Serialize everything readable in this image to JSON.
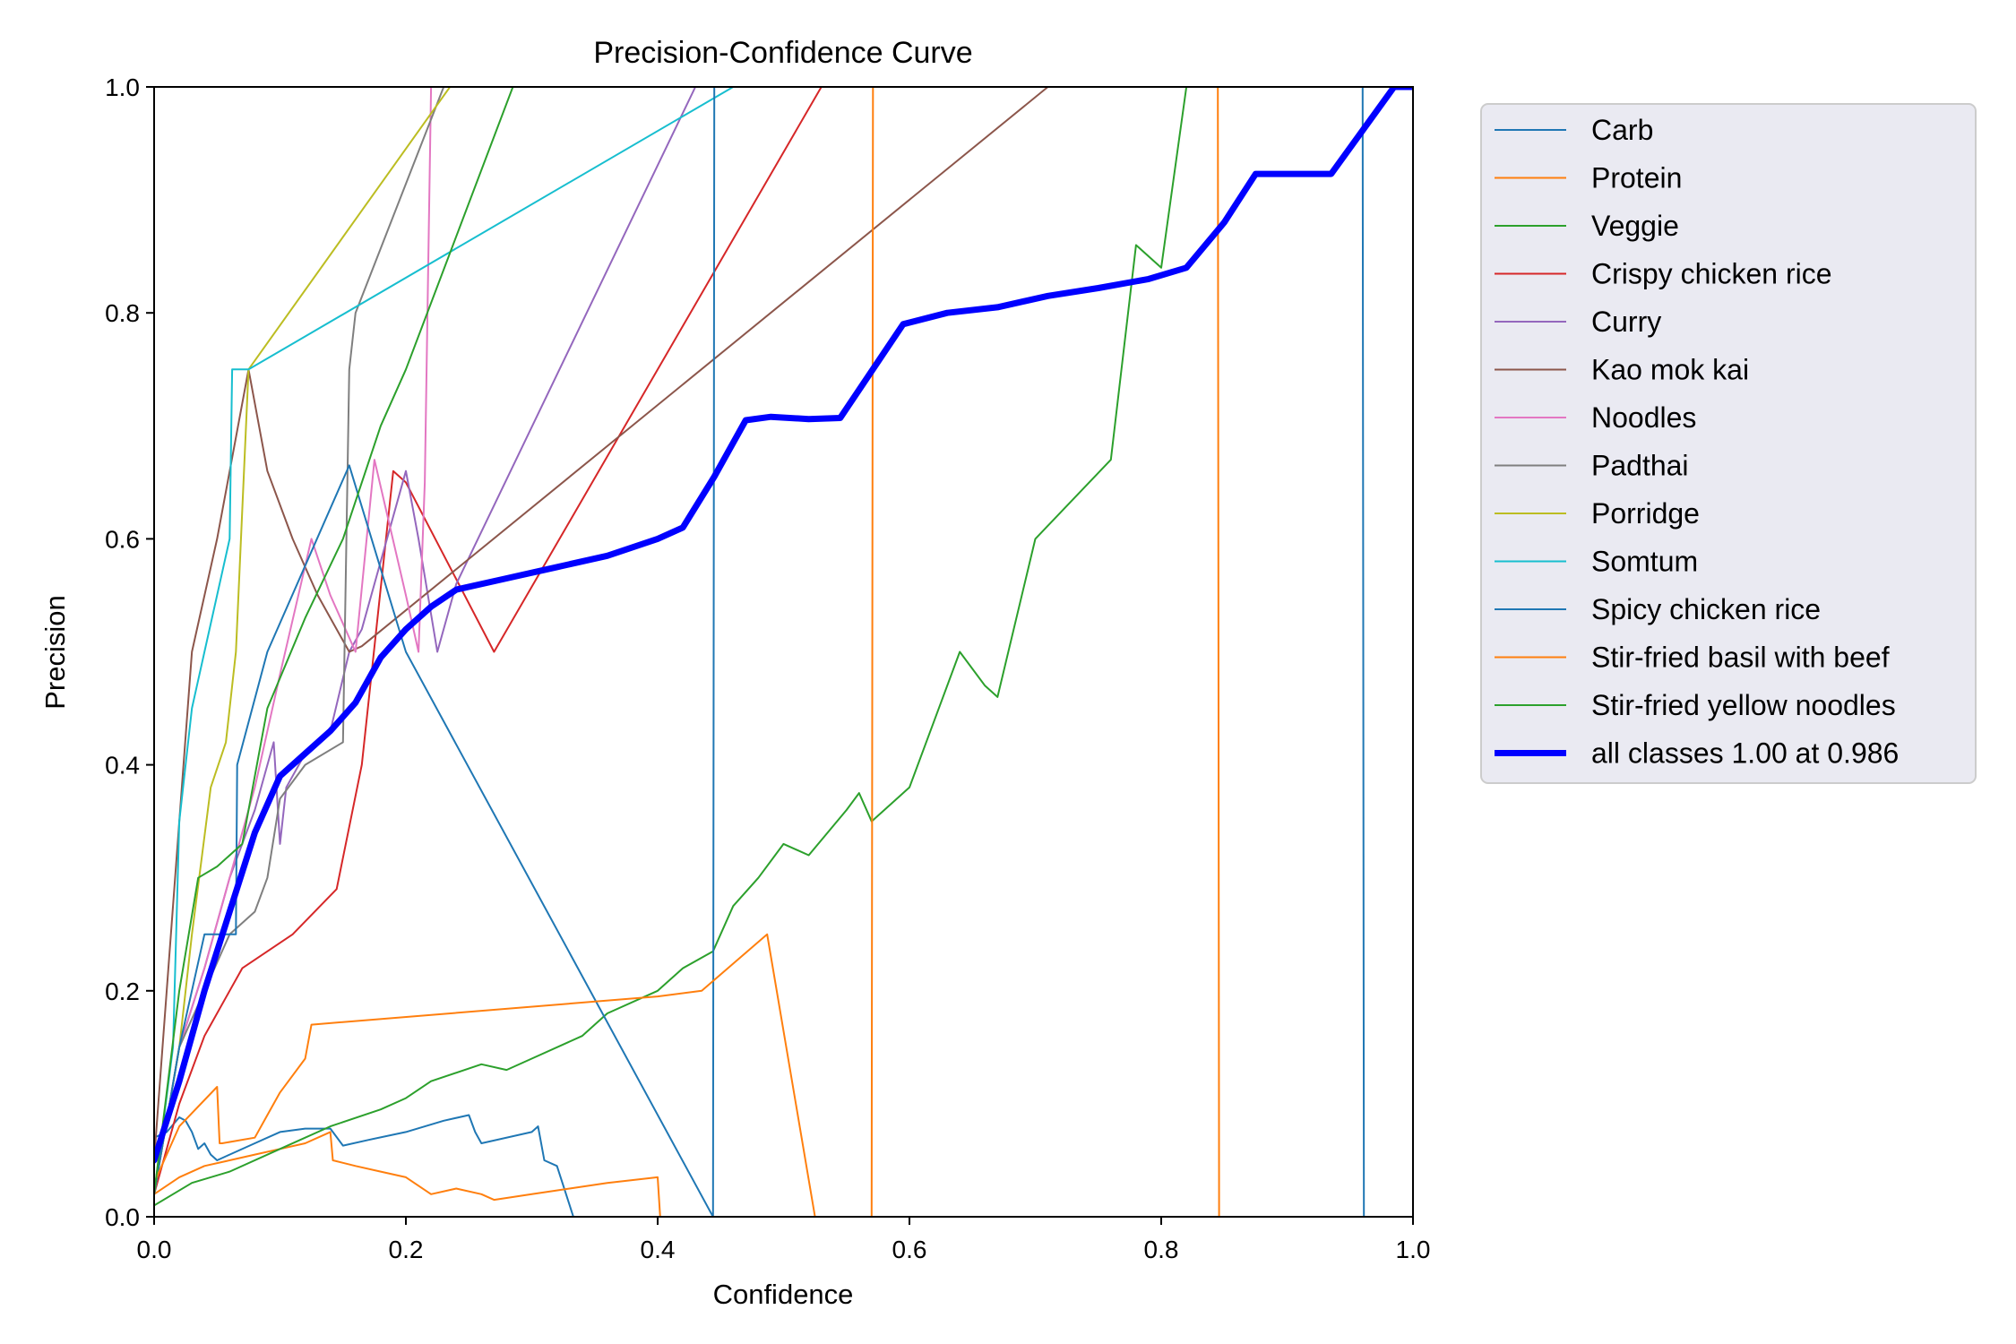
{
  "chart_data": {
    "type": "line",
    "title": "Precision-Confidence Curve",
    "xlabel": "Confidence",
    "ylabel": "Precision",
    "xlim": [
      0,
      1
    ],
    "ylim": [
      0,
      1
    ],
    "xticks": [
      "0.0",
      "0.2",
      "0.4",
      "0.6",
      "0.8",
      "1.0"
    ],
    "yticks": [
      "0.0",
      "0.2",
      "0.4",
      "0.6",
      "0.8",
      "1.0"
    ],
    "grid": false,
    "legend_position": "outside-right-top",
    "series": [
      {
        "name": "Carb",
        "color": "#1f77b4",
        "width": 2,
        "x": [
          0.0,
          0.01,
          0.02,
          0.025,
          0.03,
          0.035,
          0.04,
          0.045,
          0.05,
          0.06,
          0.08,
          0.1,
          0.12,
          0.14,
          0.15,
          0.17,
          0.2,
          0.23,
          0.25,
          0.255,
          0.26,
          0.3,
          0.305,
          0.31,
          0.32,
          0.333,
          0.34
        ],
        "y": [
          0.07,
          0.075,
          0.088,
          0.085,
          0.075,
          0.06,
          0.065,
          0.055,
          0.05,
          0.055,
          0.065,
          0.075,
          0.078,
          0.078,
          0.063,
          0.068,
          0.075,
          0.085,
          0.09,
          0.075,
          0.065,
          0.075,
          0.08,
          0.05,
          0.045,
          0.0,
          0.0
        ]
      },
      {
        "name": "Protein",
        "color": "#ff7f0e",
        "width": 2,
        "x": [
          0.0,
          0.02,
          0.04,
          0.06,
          0.08,
          0.1,
          0.12,
          0.14,
          0.142,
          0.16,
          0.18,
          0.2,
          0.22,
          0.24,
          0.26,
          0.27,
          0.3,
          0.33,
          0.36,
          0.4,
          0.402,
          0.405
        ],
        "y": [
          0.02,
          0.035,
          0.045,
          0.05,
          0.055,
          0.06,
          0.065,
          0.075,
          0.05,
          0.045,
          0.04,
          0.035,
          0.02,
          0.025,
          0.02,
          0.015,
          0.02,
          0.025,
          0.03,
          0.035,
          0.0,
          0.0
        ]
      },
      {
        "name": "Veggie",
        "color": "#2ca02c",
        "width": 2,
        "x": [
          0.0,
          0.03,
          0.06,
          0.1,
          0.14,
          0.18,
          0.2,
          0.22,
          0.26,
          0.28,
          0.3,
          0.34,
          0.36,
          0.4,
          0.42,
          0.444,
          0.46,
          0.48,
          0.5,
          0.52,
          0.55,
          0.56,
          0.57,
          0.6,
          0.62,
          0.64,
          0.66,
          0.67,
          0.7,
          0.76,
          0.78,
          0.8,
          0.82,
          0.83,
          1.0
        ],
        "y": [
          0.01,
          0.03,
          0.04,
          0.06,
          0.08,
          0.095,
          0.105,
          0.12,
          0.135,
          0.13,
          0.14,
          0.16,
          0.18,
          0.2,
          0.22,
          0.235,
          0.275,
          0.3,
          0.33,
          0.32,
          0.36,
          0.375,
          0.35,
          0.38,
          0.44,
          0.5,
          0.47,
          0.46,
          0.6,
          0.67,
          0.86,
          0.84,
          1.0,
          1.0,
          1.0
        ]
      },
      {
        "name": "Crispy chicken rice",
        "color": "#d62728",
        "width": 2,
        "x": [
          0.0,
          0.02,
          0.04,
          0.06,
          0.07,
          0.11,
          0.145,
          0.165,
          0.19,
          0.2,
          0.27,
          0.53,
          1.0
        ],
        "y": [
          0.02,
          0.1,
          0.16,
          0.2,
          0.22,
          0.25,
          0.29,
          0.4,
          0.66,
          0.65,
          0.5,
          1.0,
          1.0
        ]
      },
      {
        "name": "Curry",
        "color": "#9467bd",
        "width": 2,
        "x": [
          0.0,
          0.02,
          0.04,
          0.06,
          0.08,
          0.095,
          0.1,
          0.105,
          0.12,
          0.14,
          0.155,
          0.165,
          0.2,
          0.21,
          0.225,
          0.24,
          0.43,
          1.0
        ],
        "y": [
          0.02,
          0.15,
          0.22,
          0.3,
          0.36,
          0.42,
          0.33,
          0.38,
          0.41,
          0.43,
          0.5,
          0.52,
          0.66,
          0.6,
          0.5,
          0.56,
          1.0,
          1.0
        ]
      },
      {
        "name": "Kao mok kai",
        "color": "#8c564b",
        "width": 2,
        "x": [
          0.0,
          0.02,
          0.03,
          0.05,
          0.075,
          0.09,
          0.11,
          0.13,
          0.155,
          0.165,
          0.71,
          1.0
        ],
        "y": [
          0.05,
          0.35,
          0.5,
          0.6,
          0.75,
          0.66,
          0.6,
          0.55,
          0.5,
          0.505,
          1.0,
          1.0
        ]
      },
      {
        "name": "Noodles",
        "color": "#e377c2",
        "width": 2,
        "x": [
          0.0,
          0.02,
          0.04,
          0.06,
          0.08,
          0.1,
          0.125,
          0.14,
          0.16,
          0.175,
          0.2,
          0.21,
          0.215,
          0.22,
          1.0
        ],
        "y": [
          0.02,
          0.15,
          0.22,
          0.3,
          0.38,
          0.48,
          0.6,
          0.55,
          0.5,
          0.67,
          0.55,
          0.5,
          0.65,
          1.0,
          1.0
        ]
      },
      {
        "name": "Padthai",
        "color": "#7f7f7f",
        "width": 2,
        "x": [
          0.0,
          0.02,
          0.04,
          0.06,
          0.08,
          0.09,
          0.1,
          0.12,
          0.15,
          0.155,
          0.16,
          0.23,
          1.0
        ],
        "y": [
          0.02,
          0.15,
          0.2,
          0.25,
          0.27,
          0.3,
          0.37,
          0.4,
          0.42,
          0.75,
          0.8,
          1.0,
          1.0
        ]
      },
      {
        "name": "Porridge",
        "color": "#bcbd22",
        "width": 2,
        "x": [
          0.0,
          0.02,
          0.03,
          0.045,
          0.057,
          0.065,
          0.075,
          0.235,
          1.0
        ],
        "y": [
          0.02,
          0.15,
          0.25,
          0.38,
          0.42,
          0.5,
          0.75,
          1.0,
          1.0
        ]
      },
      {
        "name": "Somtum",
        "color": "#17becf",
        "width": 2,
        "x": [
          0.0,
          0.015,
          0.02,
          0.03,
          0.04,
          0.06,
          0.062,
          0.075,
          0.46,
          1.0
        ],
        "y": [
          0.02,
          0.15,
          0.35,
          0.45,
          0.5,
          0.6,
          0.75,
          0.75,
          1.0,
          1.0
        ]
      },
      {
        "name": "Spicy chicken rice",
        "color": "#1f77b4",
        "width": 2,
        "x": [
          0.0,
          0.02,
          0.04,
          0.065,
          0.066,
          0.09,
          0.155,
          0.2,
          0.444,
          0.445,
          0.96,
          0.961,
          1.0
        ],
        "y": [
          0.02,
          0.15,
          0.25,
          0.25,
          0.4,
          0.5,
          0.665,
          0.5,
          0.0,
          1.0,
          1.0,
          0.0,
          0.0
        ]
      },
      {
        "name": "Stir-fried basil with beef",
        "color": "#ff7f0e",
        "width": 2,
        "x": [
          0.0,
          0.02,
          0.05,
          0.052,
          0.054,
          0.08,
          0.09,
          0.1,
          0.12,
          0.125,
          0.4,
          0.435,
          0.487,
          0.525,
          0.57,
          0.571,
          0.845,
          0.846,
          1.0
        ],
        "y": [
          0.03,
          0.08,
          0.115,
          0.065,
          0.065,
          0.07,
          0.09,
          0.11,
          0.14,
          0.17,
          0.195,
          0.2,
          0.25,
          0.0,
          0.0,
          1.0,
          1.0,
          0.0,
          0.0
        ]
      },
      {
        "name": "Stir-fried yellow noodles",
        "color": "#2ca02c",
        "width": 2,
        "x": [
          0.0,
          0.02,
          0.035,
          0.05,
          0.07,
          0.09,
          0.12,
          0.15,
          0.18,
          0.2,
          0.285,
          1.0
        ],
        "y": [
          0.02,
          0.2,
          0.3,
          0.31,
          0.33,
          0.45,
          0.53,
          0.6,
          0.7,
          0.75,
          1.0,
          1.0
        ]
      },
      {
        "name": "all classes 1.00 at 0.986",
        "color": "#0000ff",
        "width": 7,
        "x": [
          0.0,
          0.02,
          0.04,
          0.06,
          0.08,
          0.1,
          0.12,
          0.14,
          0.16,
          0.18,
          0.2,
          0.22,
          0.24,
          0.28,
          0.32,
          0.36,
          0.4,
          0.42,
          0.445,
          0.47,
          0.49,
          0.52,
          0.545,
          0.595,
          0.63,
          0.67,
          0.71,
          0.75,
          0.79,
          0.82,
          0.85,
          0.875,
          0.935,
          0.985,
          1.0
        ],
        "y": [
          0.05,
          0.12,
          0.2,
          0.27,
          0.34,
          0.39,
          0.41,
          0.43,
          0.455,
          0.495,
          0.52,
          0.54,
          0.555,
          0.565,
          0.575,
          0.585,
          0.6,
          0.61,
          0.655,
          0.705,
          0.708,
          0.706,
          0.707,
          0.79,
          0.8,
          0.805,
          0.815,
          0.822,
          0.83,
          0.84,
          0.88,
          0.923,
          0.923,
          1.0,
          1.0
        ]
      }
    ]
  }
}
